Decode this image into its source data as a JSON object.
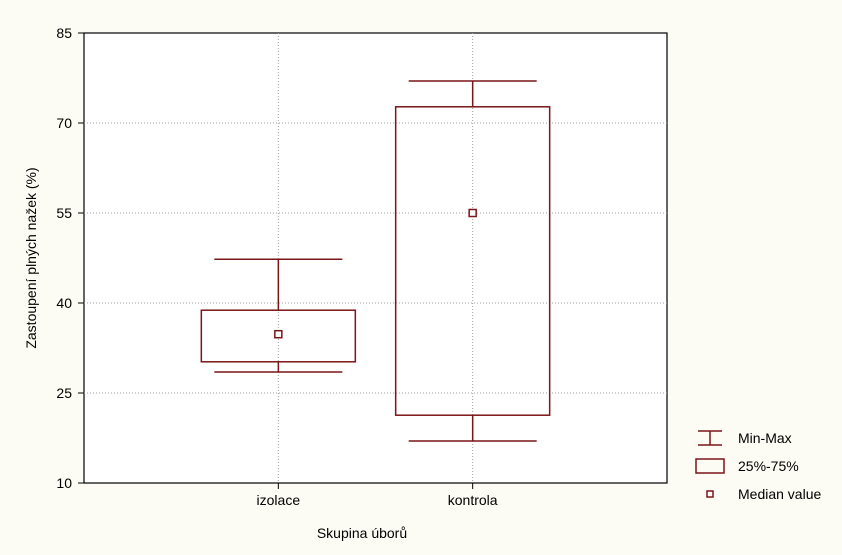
{
  "chart_data": {
    "type": "box",
    "xlabel": "Skupina úborů",
    "ylabel": "Zastoupení plných nažek (%)",
    "ylim": [
      10,
      85
    ],
    "yticks": [
      10,
      25,
      40,
      55,
      70,
      85
    ],
    "grid": true,
    "legend_position": "bottom-right",
    "categories": [
      "izolace",
      "kontrola"
    ],
    "boxes": [
      {
        "category": "izolace",
        "min": 28.5,
        "q1": 30.2,
        "median": 34.8,
        "q3": 38.8,
        "max": 47.3
      },
      {
        "category": "kontrola",
        "min": 17.0,
        "q1": 21.3,
        "median": 55.0,
        "q3": 72.7,
        "max": 77.0
      }
    ],
    "legend": [
      {
        "kind": "whisker",
        "label": "Min-Max"
      },
      {
        "kind": "box",
        "label": "25%-75%"
      },
      {
        "kind": "median",
        "label": "Median value"
      }
    ],
    "colors": {
      "series": "#7b1518",
      "background": "#fcfcf4",
      "plot_bg": "#ffffff",
      "grid": "#a0a0a0",
      "axis": "#000000"
    }
  }
}
